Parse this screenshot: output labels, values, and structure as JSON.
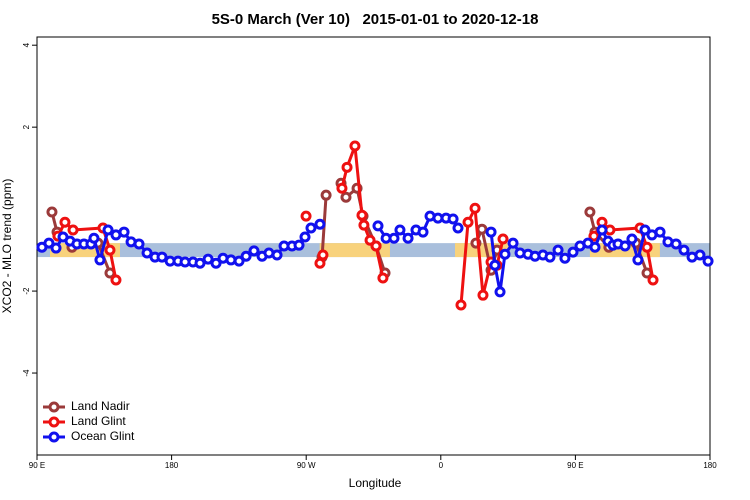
{
  "chart_data": {
    "type": "line",
    "title": "5S-0 March (Ver 10)   2015-01-01 to 2020-12-18",
    "x_label": "Longitude",
    "y_label": "XCO2 - MLO trend (ppm)",
    "xlim": [
      90,
      540
    ],
    "xticks": [
      {
        "value": 90,
        "label": "90 E"
      },
      {
        "value": 180,
        "label": "180"
      },
      {
        "value": 270,
        "label": "90 W"
      },
      {
        "value": 360,
        "label": "0"
      },
      {
        "value": 450,
        "label": "90 E"
      },
      {
        "value": 540,
        "label": "180"
      }
    ],
    "ylim": [
      -6,
      4.2
    ],
    "yticks": [
      -4,
      -2,
      2,
      4
    ],
    "legend": "bottom-left",
    "reference_band": {
      "range": [
        -1.17,
        -0.83
      ],
      "color": "#a9bfdc",
      "highlight_color": "#f8d27c",
      "highlight_x": [
        [
          98.7,
          145.5
        ],
        [
          279,
          326
        ],
        [
          369.5,
          406
        ],
        [
          459.7,
          506.5
        ]
      ]
    },
    "series": [
      {
        "name": "Land Nadir",
        "color": "#9b3a3a",
        "x": [
          100.0,
          103.4,
          113.4,
          130.8,
          138.8,
          null,
          280.6,
          283.3,
          null,
          293.3,
          296.6,
          304.0,
          308.0,
          316.7,
          322.7,
          null,
          383.5,
          387.5,
          393.6,
          397.6,
          null,
          459.7,
          463.1,
          472.4,
          490.5,
          497.9
        ],
        "values": [
          -0.07,
          -0.56,
          -0.93,
          -0.83,
          -1.56,
          null,
          -1.17,
          0.34,
          null,
          0.63,
          0.29,
          0.51,
          -0.17,
          -0.9,
          -1.56,
          null,
          -0.83,
          -0.49,
          -1.49,
          -1.0,
          null,
          -0.07,
          -0.56,
          -0.93,
          -0.83,
          -1.56
        ]
      },
      {
        "name": "Land Glint",
        "color": "#ee1111",
        "x": [
          104.0,
          108.7,
          114.1,
          134.1,
          138.8,
          142.8,
          null,
          269.9,
          null,
          279.2,
          281.2,
          null,
          293.9,
          297.3,
          302.6,
          307.3,
          308.6,
          312.7,
          316.7,
          321.3,
          null,
          373.5,
          378.2,
          382.9,
          388.2,
          393.6,
          397.6,
          401.6,
          null,
          462.4,
          467.8,
          473.1,
          493.2,
          497.9,
          501.9
        ],
        "values": [
          -0.66,
          -0.32,
          -0.51,
          -0.46,
          -1.0,
          -1.73,
          null,
          -0.17,
          null,
          -1.32,
          -1.12,
          null,
          0.51,
          1.02,
          1.54,
          -0.15,
          -0.39,
          -0.76,
          -0.9,
          -1.68,
          null,
          -2.34,
          -0.32,
          0.02,
          -2.1,
          -1.29,
          -1.37,
          -0.73,
          null,
          -0.66,
          -0.32,
          -0.51,
          -0.46,
          -0.93,
          -1.73
        ]
      },
      {
        "name": "Ocean Glint",
        "color": "#1111ee",
        "x": [
          93.3,
          98.0,
          102.7,
          107.4,
          112.1,
          116.7,
          121.4,
          126.1,
          128.1,
          132.1,
          137.5,
          142.8,
          148.2,
          152.9,
          158.2,
          163.6,
          168.9,
          173.6,
          179.0,
          184.3,
          189.0,
          194.3,
          199.0,
          204.4,
          209.7,
          214.4,
          219.7,
          225.1,
          229.8,
          235.1,
          240.5,
          245.1,
          250.5,
          255.2,
          260.5,
          265.2,
          269.2,
          273.2,
          279.2,
          null,
          318.0,
          323.4,
          328.7,
          332.7,
          338.1,
          343.4,
          348.1,
          352.8,
          358.1,
          363.5,
          368.2,
          371.5,
          null,
          393.6,
          396.2,
          399.6,
          402.9,
          408.3,
          413.0,
          418.3,
          423.0,
          428.3,
          433.0,
          438.4,
          443.0,
          448.4,
          453.1,
          458.4,
          463.1,
          467.8,
          471.8,
          475.1,
          478.5,
          483.2,
          487.8,
          491.8,
          496.5,
          501.2,
          506.6,
          511.9,
          517.3,
          522.6,
          528.0,
          533.3,
          538.7
        ],
        "values": [
          -0.93,
          -0.83,
          -0.95,
          -0.68,
          -0.78,
          -0.85,
          -0.85,
          -0.85,
          -0.71,
          -1.24,
          -0.51,
          -0.63,
          -0.56,
          -0.8,
          -0.85,
          -1.07,
          -1.17,
          -1.17,
          -1.27,
          -1.27,
          -1.29,
          -1.29,
          -1.32,
          -1.22,
          -1.32,
          -1.2,
          -1.24,
          -1.27,
          -1.15,
          -1.02,
          -1.15,
          -1.07,
          -1.12,
          -0.9,
          -0.9,
          -0.88,
          -0.68,
          -0.46,
          -0.37,
          null,
          -0.41,
          -0.71,
          -0.71,
          -0.51,
          -0.71,
          -0.51,
          -0.56,
          -0.17,
          -0.22,
          -0.22,
          -0.24,
          -0.46,
          null,
          -0.56,
          -1.37,
          -2.02,
          -1.1,
          -0.83,
          -1.07,
          -1.1,
          -1.15,
          -1.12,
          -1.17,
          -1.0,
          -1.2,
          -1.05,
          -0.9,
          -0.83,
          -0.93,
          -0.51,
          -0.78,
          -0.88,
          -0.85,
          -0.9,
          -0.73,
          -1.24,
          -0.51,
          -0.63,
          -0.56,
          -0.8,
          -0.85,
          -1.0,
          -1.17,
          -1.12,
          -1.27
        ]
      }
    ]
  }
}
